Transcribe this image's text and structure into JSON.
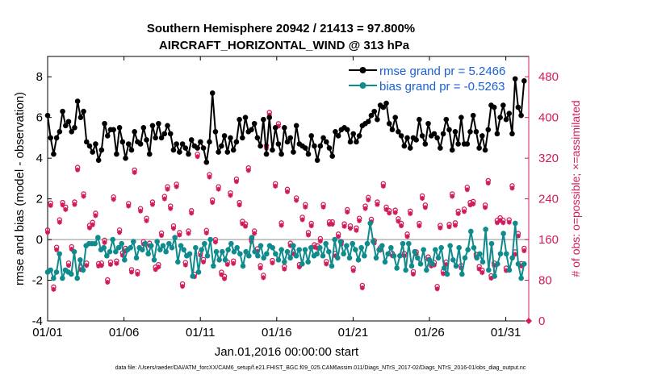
{
  "chart_data": {
    "type": "line",
    "title": "Southern Hemisphere 20942 / 21413 = 97.800%",
    "subtitle": "AIRCRAFT_HORIZONTAL_WIND @ 313 hPa",
    "xlabel": "Jan.01,2016 00:00:00 start",
    "ylabel": "rmse and bias (model - observation)",
    "ylabel_right": "# of obs: o=possible; ×=assimilated",
    "x_ticks": [
      "01/01",
      "01/06",
      "01/11",
      "01/16",
      "01/21",
      "01/26",
      "01/31"
    ],
    "y_ticks": [
      "-4",
      "-2",
      "0",
      "2",
      "4",
      "6",
      "8"
    ],
    "y2_ticks": [
      "0",
      "80",
      "160",
      "240",
      "320",
      "400",
      "480"
    ],
    "ylim": [
      -4,
      9
    ],
    "y2lim": [
      0,
      520
    ],
    "xlim": [
      0,
      31.5
    ],
    "footnote": "data file: /Users/raeder/DAI/ATM_forcXX/CAM6_setup/f.e21.FHIST_BGC.f09_025.CAM6assim.011/Diags_NTrS_2017-02/Diags_NTrS_2016-01/obs_diag_output.nc",
    "colors": {
      "rmse": "#000000",
      "bias": "#0f8b8d",
      "obs": "#d11c5c",
      "zero": "#b4b4b4",
      "legend_text": "#1a5fd6"
    },
    "series": [
      {
        "name": "rmse grand pr = 5.2466",
        "values": [
          6.1,
          5.0,
          4.2,
          5.0,
          5.3,
          6.3,
          5.6,
          5.8,
          5.3,
          5.5,
          6.8,
          6.0,
          6.3,
          4.8,
          4.6,
          4.3,
          4.7,
          3.9,
          4.4,
          5.7,
          5.1,
          5.4,
          5.4,
          4.2,
          5.5,
          4.8,
          4.0,
          4.7,
          4.4,
          5.3,
          4.8,
          4.7,
          5.5,
          4.9,
          4.2,
          5.6,
          5.0,
          5.7,
          5.0,
          5.2,
          5.6,
          5.2,
          4.4,
          4.7,
          4.3,
          4.7,
          4.5,
          4.2,
          4.9,
          4.6,
          4.5,
          4.8,
          4.5,
          3.8,
          4.8,
          7.2,
          5.3,
          4.3,
          4.6,
          5.1,
          4.3,
          5.0,
          4.4,
          4.8,
          5.9,
          5.0,
          6.0,
          5.3,
          5.4,
          5.7,
          5.0,
          4.6,
          5.9,
          4.2,
          6.0,
          4.4,
          5.5,
          4.7,
          4.2,
          5.5,
          4.8,
          5.0,
          4.3,
          5.6,
          4.7,
          4.6,
          4.5,
          4.2,
          5.1,
          4.6,
          3.9,
          4.6,
          5.0,
          4.8,
          4.5,
          4.1,
          5.3,
          5.1,
          5.4,
          5.5,
          5.4,
          4.8,
          5.2,
          4.8,
          5.1,
          5.6,
          5.7,
          5.8,
          6.1,
          6.3,
          5.9,
          6.6,
          6.5,
          6.7,
          5.7,
          5.4,
          6.0,
          5.3,
          5.1,
          4.6,
          5.0,
          4.5,
          5.0,
          4.9,
          5.9,
          5.1,
          4.7,
          5.7,
          5.1,
          5.2,
          5.0,
          4.5,
          5.2,
          5.9,
          5.4,
          4.4,
          5.3,
          4.7,
          6.0,
          4.7,
          4.7,
          5.3,
          6.1,
          5.3,
          4.5,
          5.1,
          4.4,
          5.4,
          6.6,
          6.5,
          5.2,
          6.0,
          6.6,
          5.9,
          6.2,
          5.2,
          7.9,
          6.5,
          6.1,
          7.8
        ]
      },
      {
        "name": "bias grand pr = -0.5263",
        "values": [
          -1.6,
          -1.5,
          -1.9,
          -1.6,
          -0.7,
          -1.9,
          -1.5,
          -1.6,
          -1.7,
          -0.6,
          -1.9,
          -1.0,
          -1.5,
          -0.3,
          -0.2,
          -0.2,
          -0.2,
          0.1,
          -0.5,
          -0.4,
          -0.8,
          -0.6,
          0.0,
          -0.6,
          -0.4,
          -0.2,
          -1.0,
          -0.5,
          -0.4,
          -0.1,
          -0.9,
          -0.4,
          -0.5,
          -0.2,
          -0.7,
          -0.3,
          -1.0,
          -0.1,
          -0.5,
          -0.3,
          -0.6,
          -0.2,
          -0.4,
          0.1,
          -1.1,
          -0.3,
          -0.5,
          -0.8,
          -0.7,
          -1.8,
          -0.4,
          -1.6,
          -0.5,
          -0.2,
          -0.8,
          0.0,
          -1.3,
          -0.6,
          -1.0,
          -0.6,
          -1.0,
          -0.5,
          -0.2,
          -0.6,
          -0.4,
          -0.7,
          -1.3,
          -0.6,
          -0.8,
          0.1,
          -0.6,
          -0.8,
          -0.3,
          -0.9,
          -0.7,
          -0.3,
          -0.4,
          -0.7,
          -1.0,
          -0.5,
          -1.1,
          -0.6,
          -0.9,
          -0.3,
          -0.8,
          -0.5,
          -1.2,
          -0.5,
          -1.1,
          -0.4,
          -0.8,
          -0.7,
          -0.4,
          -0.8,
          -0.2,
          -0.6,
          -1.3,
          0.0,
          -0.9,
          -0.1,
          -0.7,
          -0.3,
          -0.9,
          -0.2,
          -0.5,
          -1.0,
          -0.4,
          -0.8,
          -0.2,
          0.8,
          -0.1,
          -0.9,
          -0.5,
          -0.3,
          -1.1,
          -0.7,
          -0.4,
          -0.8,
          -1.4,
          -0.8,
          -0.2,
          -1.5,
          -0.2,
          -1.3,
          -0.6,
          -0.9,
          -1.2,
          -0.5,
          -1.5,
          -1.0,
          -1.2,
          -0.5,
          -0.9,
          -0.4,
          -1.4,
          -1.7,
          -0.3,
          -1.0,
          -1.3,
          -0.4,
          -1.7,
          -0.9,
          -0.5,
          0.4,
          -0.4,
          -0.9,
          -0.7,
          -1.1,
          0.5,
          -1.5,
          -0.2,
          -1.8,
          -1.2,
          -0.7,
          0.3,
          -0.7,
          -1.5,
          -0.9,
          0.8,
          -1.2,
          -1.9,
          -1.2
        ]
      }
    ],
    "obs_possible": [
      174,
      227,
      62,
      140,
      194,
      228,
      219,
      109,
      141,
      229,
      297,
      101,
      245,
      109,
      183,
      189,
      207,
      108,
      109,
      154,
      76,
      111,
      239,
      113,
      174,
      129,
      138,
      226,
      96,
      292,
      92,
      216,
      151,
      197,
      148,
      229,
      101,
      106,
      168,
      240,
      259,
      221,
      182,
      264,
      169,
      68,
      110,
      172,
      212,
      87,
      323,
      129,
      116,
      173,
      283,
      233,
      155,
      259,
      91,
      83,
      111,
      247,
      113,
      274,
      228,
      191,
      186,
      296,
      156,
      172,
      137,
      104,
      85,
      340,
      405,
      114,
      265,
      383,
      188,
      102,
      254,
      148,
      132,
      237,
      106,
      199,
      224,
      169,
      187,
      145,
      143,
      157,
      224,
      112,
      190,
      190,
      128,
      166,
      151,
      186,
      214,
      182,
      99,
      178,
      197,
      65,
      221,
      238,
      195,
      153,
      229,
      139,
      265,
      219,
      212,
      128,
      213,
      196,
      187,
      128,
      166,
      211,
      92,
      131,
      187,
      241,
      223,
      121,
      108,
      110,
      63,
      183,
      93,
      111,
      185,
      245,
      188,
      211,
      104,
      215,
      258,
      228,
      230,
      126,
      102,
      95,
      223,
      271,
      84,
      109,
      193,
      198,
      193,
      99,
      194,
      261,
      131,
      167,
      108,
      138
    ]
  }
}
